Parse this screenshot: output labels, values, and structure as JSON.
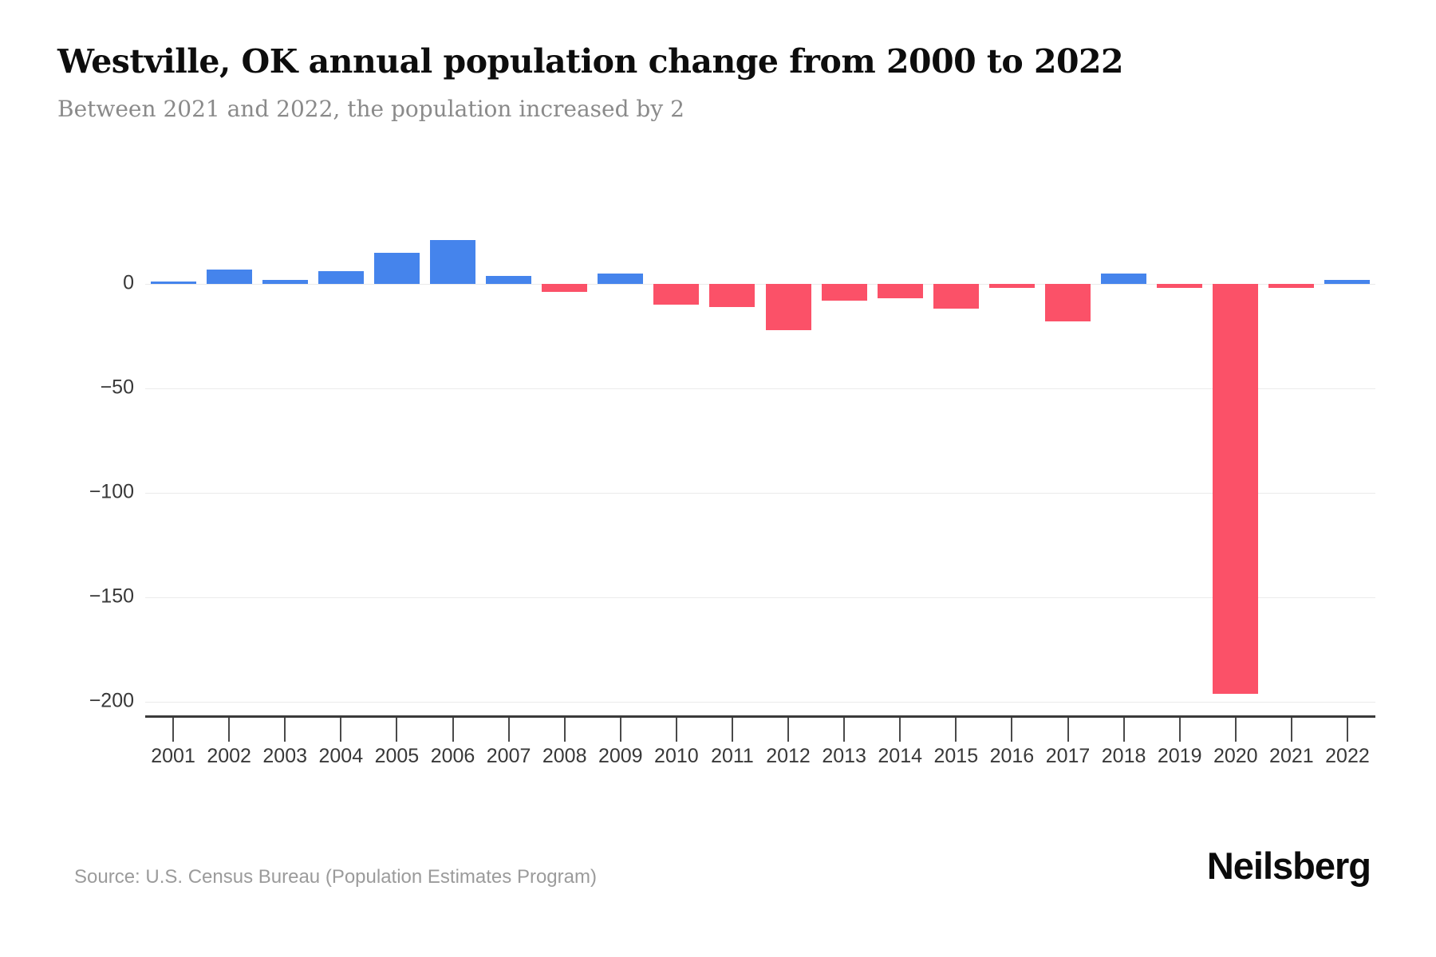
{
  "header": {
    "title": "Westville, OK annual population change from 2000 to 2022",
    "subtitle": "Between 2021 and 2022, the population increased by 2"
  },
  "footer": {
    "source": "Source: U.S. Census Bureau (Population Estimates Program)",
    "brand": "Neilsberg"
  },
  "chart_data": {
    "type": "bar",
    "title": "Westville, OK annual population change from 2000 to 2022",
    "subtitle": "Between 2021 and 2022, the population increased by 2",
    "categories": [
      "2001",
      "2002",
      "2003",
      "2004",
      "2005",
      "2006",
      "2007",
      "2008",
      "2009",
      "2010",
      "2011",
      "2012",
      "2013",
      "2014",
      "2015",
      "2016",
      "2017",
      "2018",
      "2019",
      "2020",
      "2021",
      "2022"
    ],
    "values": [
      1,
      7,
      2,
      6,
      15,
      21,
      4,
      -4,
      5,
      -10,
      -11,
      -22,
      -8,
      -7,
      -12,
      -2,
      -18,
      5,
      -2,
      -196,
      -2,
      2
    ],
    "xlabel": "",
    "ylabel": "",
    "ylim": [
      -210,
      30
    ],
    "yticks": [
      0,
      -50,
      -100,
      -150,
      -200
    ],
    "ytick_labels": [
      "0",
      "−50",
      "−100",
      "−150",
      "−200"
    ],
    "grid": "horizontal only",
    "legend": "none",
    "colors": {
      "positive": "#4584ec",
      "negative": "#fb5168",
      "gridline": "#ebebeb",
      "axis": "#3a3a3a",
      "tick_label": "#383838",
      "subtitle": "#8a8a8a",
      "source": "#9b9b9b"
    }
  }
}
